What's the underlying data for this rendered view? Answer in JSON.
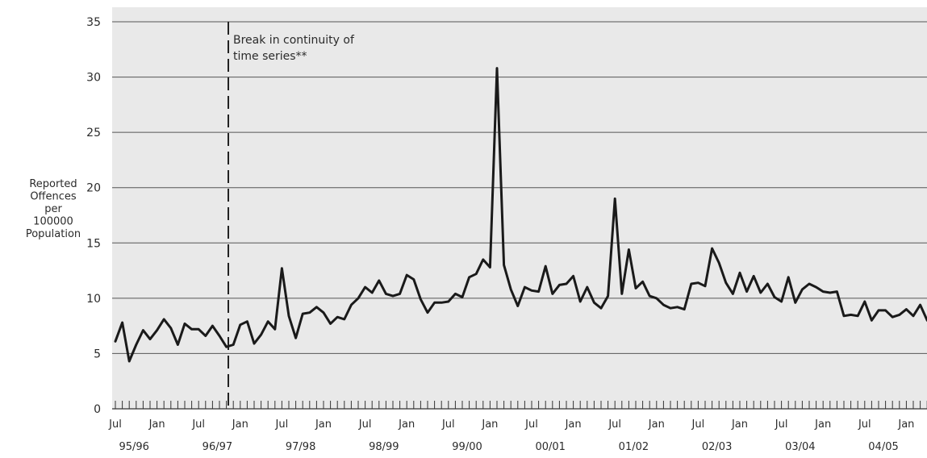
{
  "chart_data": {
    "type": "line",
    "title": "",
    "xlabel": "",
    "ylabel_lines": [
      "Reported",
      "Offences",
      "per",
      "100000",
      "Population"
    ],
    "ylim": [
      0,
      35
    ],
    "yticks": [
      "0",
      "5",
      "10",
      "15",
      "20",
      "25",
      "30",
      "35"
    ],
    "grid": "horizontal",
    "month_tick_labels": [
      "Jul",
      "Jan",
      "Jul",
      "Jan",
      "Jul",
      "Jan",
      "Jul",
      "Jan",
      "Jul",
      "Jan",
      "Jul",
      "Jan",
      "Jul",
      "Jan",
      "Jul",
      "Jan",
      "Jul",
      "Jan",
      "Jul",
      "Jan"
    ],
    "financial_year_labels": [
      "95/96",
      "96/97",
      "97/98",
      "98/99",
      "99/00",
      "00/01",
      "01/02",
      "02/03",
      "03/04",
      "04/05"
    ],
    "start_month": "Jul 1995",
    "series": [
      {
        "values": [
          6.1,
          7.8,
          4.3,
          5.8,
          7.1,
          6.3,
          7.1,
          8.1,
          7.3,
          5.8,
          7.7,
          7.2,
          7.2,
          6.6,
          7.5,
          6.6,
          5.6,
          5.8,
          7.6,
          7.9,
          5.9,
          6.7,
          7.9,
          7.2,
          12.7,
          8.4,
          6.4,
          8.6,
          8.7,
          9.2,
          8.7,
          7.7,
          8.3,
          8.1,
          9.4,
          10.0,
          11.0,
          10.5,
          11.6,
          10.4,
          10.2,
          10.4,
          12.1,
          11.7,
          9.9,
          8.7,
          9.6,
          9.6,
          9.7,
          10.4,
          10.1,
          11.9,
          12.2,
          13.5,
          12.8,
          30.8,
          13.0,
          10.8,
          9.3,
          11.0,
          10.7,
          10.6,
          12.9,
          10.4,
          11.2,
          11.3,
          12.0,
          9.7,
          11.0,
          9.6,
          9.1,
          10.2,
          19.0,
          10.4,
          14.4,
          10.9,
          11.5,
          10.2,
          10.0,
          9.4,
          9.1,
          9.2,
          9.0,
          11.3,
          11.4,
          11.1,
          14.5,
          13.2,
          11.4,
          10.4,
          12.3,
          10.6,
          12.0,
          10.5,
          11.3,
          10.1,
          9.7,
          11.9,
          9.6,
          10.8,
          11.3,
          11.0,
          10.6,
          10.5,
          10.6,
          8.4,
          8.5,
          8.4,
          9.7,
          8.0,
          8.9,
          8.9,
          8.3,
          8.5,
          9.0,
          8.4,
          9.4,
          8.0,
          8.5,
          7.7
        ]
      }
    ],
    "annotation": {
      "lines": [
        "Break in continuity of",
        "time series**"
      ],
      "at_month": "Jan 1997"
    }
  }
}
